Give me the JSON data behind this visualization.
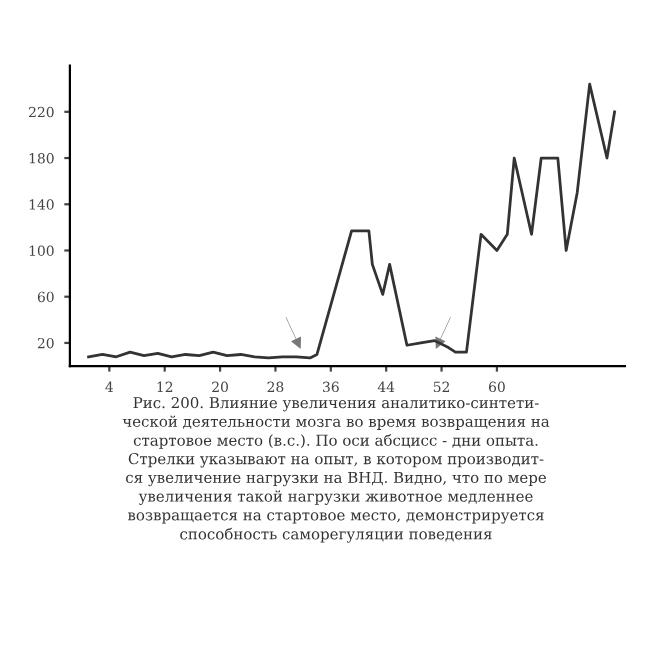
{
  "chart_data": {
    "type": "line",
    "color": "#333333",
    "x": [
      1,
      3,
      5,
      7,
      9,
      11,
      13,
      15,
      17,
      19,
      21,
      23,
      25,
      27,
      29,
      31,
      33,
      34,
      39,
      41.5,
      42,
      43.5,
      44.5,
      47,
      49,
      51,
      53,
      54,
      55.6,
      57.7,
      60,
      61.5,
      62.5,
      65,
      66.4,
      68.8,
      70,
      71.6,
      73.4,
      75.9,
      77
    ],
    "values": [
      8,
      10,
      8,
      12,
      9,
      11,
      8,
      10,
      9,
      12,
      9,
      10,
      8,
      7,
      8,
      8,
      7,
      10,
      117,
      117,
      88,
      62,
      88,
      18,
      20,
      22,
      16,
      12,
      12,
      114,
      100,
      114,
      180,
      114,
      180,
      180,
      100,
      150,
      244,
      180,
      220
    ],
    "xlim": [
      -1.7,
      78.5
    ],
    "ylim": [
      0,
      260
    ],
    "xticks": [
      4,
      12,
      20,
      28,
      36,
      44,
      52,
      60
    ],
    "yticks": [
      20,
      60,
      100,
      140,
      180,
      220
    ],
    "grid": false,
    "marker": "none",
    "line_style": "solid",
    "annotations": [
      "Рис. 200. Влияние увеличения аналитико-синтети-\nческой деятельности мозга во время возвращения на\nстартовое место (в.с.). По оси абсцисс - дни опыта.\nСтрелки указывают на опыт, в котором производит-\nся увеличение нагрузки на ВНД. Видно, что по мере\nувеличения такой нагрузки животное медленнее\nвозвращается на стартовое место, демонстрируется\nспособность саморегуляции поведения"
    ]
  }
}
